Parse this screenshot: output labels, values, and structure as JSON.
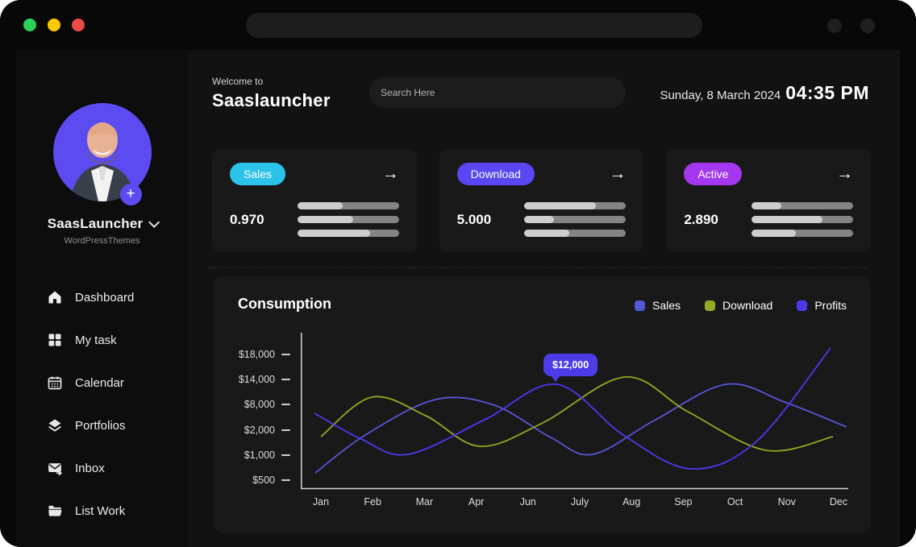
{
  "titlebar": {
    "controls": [
      "green",
      "yellow",
      "red"
    ]
  },
  "sidebar": {
    "profile": {
      "name": "SaasLauncher",
      "subtitle": "WordPressThemes"
    },
    "items": [
      {
        "label": "Dashboard",
        "icon": "home-icon"
      },
      {
        "label": "My task",
        "icon": "grid-icon"
      },
      {
        "label": "Calendar",
        "icon": "calendar-icon"
      },
      {
        "label": "Portfolios",
        "icon": "layers-icon"
      },
      {
        "label": "Inbox",
        "icon": "inbox-icon"
      },
      {
        "label": "List Work",
        "icon": "folder-icon"
      }
    ]
  },
  "header": {
    "welcome": "Welcome to",
    "app_name": "Saaslauncher",
    "search_placeholder": "Search Here",
    "date": "Sunday, 8 March 2024",
    "time": "04:35 PM"
  },
  "stats": [
    {
      "badge": "Sales",
      "badge_color": "#2cc3ea",
      "value": "0.970",
      "bars": [
        45,
        55,
        72
      ]
    },
    {
      "badge": "Download",
      "badge_color": "#5a47f3",
      "value": "5.000",
      "bars": [
        70,
        29,
        44
      ]
    },
    {
      "badge": "Active",
      "badge_color": "#a438f0",
      "value": "2.890",
      "bars": [
        29,
        70,
        44
      ]
    }
  ],
  "chart_data": {
    "type": "line",
    "title": "Consumption",
    "x_labels": [
      "Jan",
      "Feb",
      "Mar",
      "Apr",
      "Jun",
      "July",
      "Aug",
      "Sep",
      "Oct",
      "Nov",
      "Dec"
    ],
    "y_labels": [
      "$18,000",
      "$14,000",
      "$8,000",
      "$2,000",
      "$1,000",
      "$500"
    ],
    "legend_position": "top-right",
    "grid": false,
    "series": [
      {
        "name": "Sales",
        "color": "#5558d6",
        "values_usd_approx": [
          600,
          3000,
          8500,
          8200,
          5000,
          1600,
          1100,
          4000,
          12500,
          7000,
          2200
        ],
        "path": [
          [
            18,
            174
          ],
          [
            80,
            127
          ],
          [
            167,
            83
          ],
          [
            240,
            90
          ],
          [
            310,
            130
          ],
          [
            362,
            151
          ],
          [
            440,
            108
          ],
          [
            528,
            64
          ],
          [
            600,
            86
          ],
          [
            677,
            117
          ]
        ]
      },
      {
        "name": "Download",
        "color": "#93aa22",
        "values_usd_approx": [
          1800,
          8800,
          6000,
          2000,
          1500,
          8000,
          13000,
          6500,
          1300,
          1000,
          1800
        ],
        "path": [
          [
            25,
            129
          ],
          [
            88,
            80
          ],
          [
            155,
            103
          ],
          [
            222,
            141
          ],
          [
            300,
            112
          ],
          [
            402,
            55
          ],
          [
            480,
            98
          ],
          [
            577,
            146
          ],
          [
            660,
            129
          ]
        ]
      },
      {
        "name": "Profits",
        "color": "#4b39f0",
        "values_usd_approx": [
          6000,
          1500,
          1100,
          2000,
          10000,
          12000,
          5000,
          800,
          1500,
          8000,
          18500
        ],
        "path": [
          [
            17,
            100
          ],
          [
            75,
            132
          ],
          [
            133,
            151
          ],
          [
            230,
            107
          ],
          [
            317,
            64
          ],
          [
            400,
            127
          ],
          [
            484,
            169
          ],
          [
            565,
            135
          ],
          [
            657,
            19
          ]
        ]
      }
    ],
    "tooltip": {
      "label": "$12,000",
      "series": "Profits",
      "near_x": "July"
    }
  }
}
